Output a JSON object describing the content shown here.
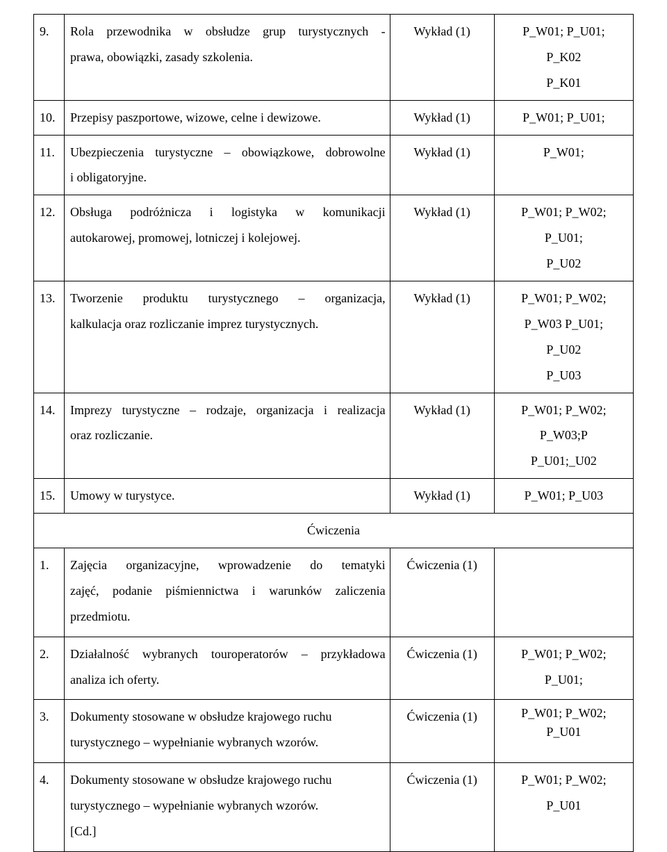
{
  "rows": [
    {
      "num": "9.",
      "desc_lines": [
        {
          "text": "Rola przewodnika w obsłudze grup turystycznych -",
          "cls": "just-full"
        },
        {
          "text": "prawa, obowiązki, zasady szkolenia.",
          "cls": ""
        }
      ],
      "type": "Wykład (1)",
      "code": "P_W01; P_U01;\nP_K02\nP_K01"
    },
    {
      "num": "10.",
      "desc_lines": [
        {
          "text": "Przepisy paszportowe, wizowe, celne i dewizowe.",
          "cls": ""
        }
      ],
      "type": "Wykład (1)",
      "code": "P_W01; P_U01;"
    },
    {
      "num": "11.",
      "desc_lines": [
        {
          "text": "Ubezpieczenia turystyczne – obowiązkowe, dobrowolne",
          "cls": "just-full"
        },
        {
          "text": "i obligatoryjne.",
          "cls": ""
        }
      ],
      "type": "Wykład (1)",
      "code": "P_W01;"
    },
    {
      "num": "12.",
      "desc_lines": [
        {
          "text": "Obsługa  podróżnicza  i  logistyka  w  komunikacji",
          "cls": "just-full"
        },
        {
          "text": "autokarowej, promowej, lotniczej i kolejowej.",
          "cls": ""
        }
      ],
      "type": "Wykład (1)",
      "code": "P_W01; P_W02;\nP_U01;\nP_U02"
    },
    {
      "num": "13.",
      "desc_lines": [
        {
          "text": "Tworzenie  produktu  turystycznego  –  organizacja,",
          "cls": "just-full"
        },
        {
          "text": "kalkulacja oraz rozliczanie imprez turystycznych.",
          "cls": ""
        }
      ],
      "type": "Wykład (1)",
      "code": "P_W01; P_W02;\nP_W03 P_U01;\nP_U02\nP_U03"
    },
    {
      "num": "14.",
      "desc_lines": [
        {
          "text": "Imprezy turystyczne – rodzaje, organizacja i realizacja",
          "cls": "just-full"
        },
        {
          "text": "oraz rozliczanie.",
          "cls": ""
        }
      ],
      "type": "Wykład (1)",
      "code": "P_W01; P_W02;\nP_W03;P\nP_U01;_U02"
    },
    {
      "num": "15.",
      "desc_lines": [
        {
          "text": "Umowy w turystyce.",
          "cls": ""
        }
      ],
      "type": "Wykład (1)",
      "code": "P_W01; P_U03"
    }
  ],
  "section_header": "Ćwiczenia",
  "ex_rows": [
    {
      "num": "1.",
      "desc_lines": [
        {
          "text": "Zajęcia  organizacyjne,  wprowadzenie  do  tematyki",
          "cls": "just-full"
        },
        {
          "text": "zajęć,  podanie  piśmiennictwa  i  warunków  zaliczenia",
          "cls": "just-full"
        },
        {
          "text": "przedmiotu.",
          "cls": ""
        }
      ],
      "type": "Ćwiczenia (1)",
      "code": ""
    },
    {
      "num": "2.",
      "desc_lines": [
        {
          "text": "Działalność wybranych touroperatorów – przykładowa",
          "cls": "just-full"
        },
        {
          "text": "analiza ich oferty.",
          "cls": ""
        }
      ],
      "type": "Ćwiczenia (1)",
      "code": "P_W01; P_W02;\nP_U01;"
    },
    {
      "num": "3.",
      "desc_lines": [
        {
          "text": "Dokumenty stosowane w obsłudze krajowego  ruchu",
          "cls": ""
        },
        {
          "text": "turystycznego – wypełnianie wybranych wzorów.",
          "cls": ""
        }
      ],
      "type": "Ćwiczenia (1)",
      "code": "P_W01; P_W02;\nP_U01",
      "code_line_height": "1.5"
    },
    {
      "num": "4.",
      "desc_lines": [
        {
          "text": "Dokumenty stosowane w obsłudze krajowego  ruchu",
          "cls": ""
        },
        {
          "text": "turystycznego – wypełnianie wybranych wzorów.",
          "cls": ""
        },
        {
          "text": "[Cd.]",
          "cls": ""
        }
      ],
      "type": "Ćwiczenia (1)",
      "code": "P_W01; P_W02;\nP_U01"
    }
  ]
}
